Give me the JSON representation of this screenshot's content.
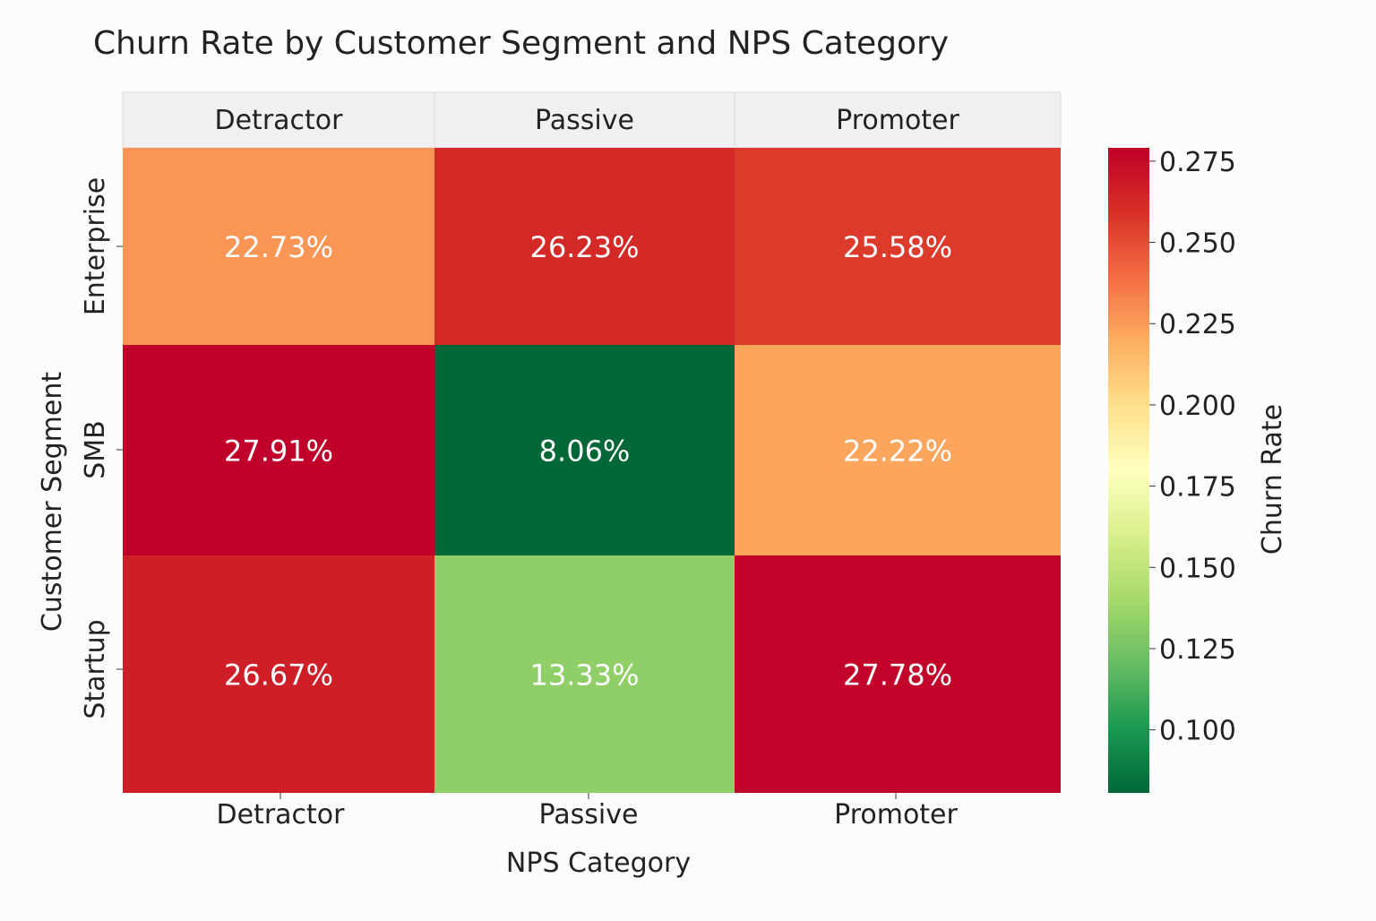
{
  "chart_data": {
    "type": "heatmap",
    "title": "Churn Rate by Customer Segment and NPS Category",
    "xlabel": "NPS Category",
    "ylabel": "Customer Segment",
    "x_categories": [
      "Detractor",
      "Passive",
      "Promoter"
    ],
    "y_categories": [
      "Enterprise",
      "SMB",
      "Startup"
    ],
    "values": [
      [
        0.2273,
        0.2623,
        0.2558
      ],
      [
        0.2791,
        0.0806,
        0.2222
      ],
      [
        0.2667,
        0.1333,
        0.2778
      ]
    ],
    "annotations": [
      [
        "22.73%",
        "26.23%",
        "25.58%"
      ],
      [
        "27.91%",
        "8.06%",
        "22.22%"
      ],
      [
        "26.67%",
        "13.33%",
        "27.78%"
      ]
    ],
    "colormap": "RdYlGn_r",
    "colorbar": {
      "label": "Churn Rate",
      "range": [
        0.0806,
        0.2791
      ],
      "ticks": [
        "0.100",
        "0.125",
        "0.150",
        "0.175",
        "0.200",
        "0.225",
        "0.250",
        "0.275"
      ]
    }
  }
}
